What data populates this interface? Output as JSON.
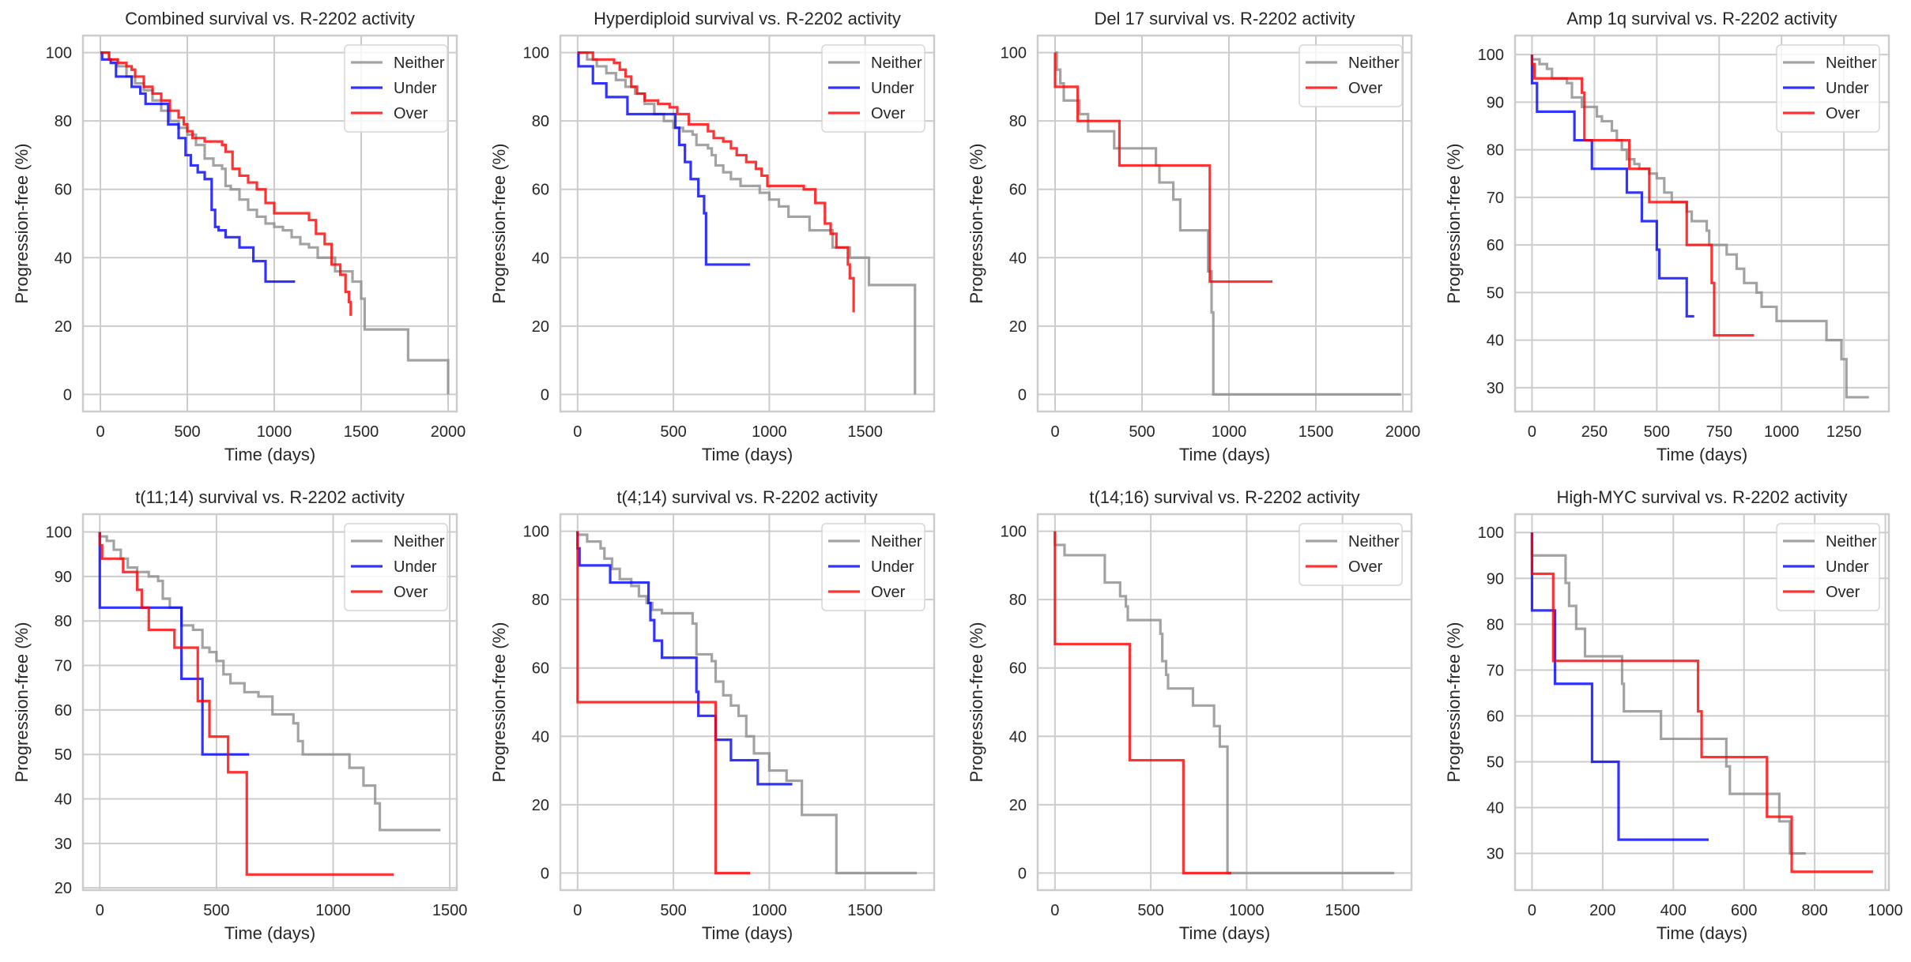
{
  "colors": {
    "Neither": "#8c8c8c",
    "Under": "#0000ff",
    "Over": "#ff0000"
  },
  "chart_data": [
    {
      "type": "line",
      "title": "Combined survival vs. R-2202 activity",
      "xlabel": "Time (days)",
      "ylabel": "Progression-free (%)",
      "xlim": [
        -100,
        2050
      ],
      "ylim": [
        -5,
        105
      ],
      "xticks": [
        0,
        500,
        1000,
        1500,
        2000
      ],
      "yticks": [
        0,
        20,
        40,
        60,
        80,
        100
      ],
      "grid": true,
      "legend": "top-right",
      "series": [
        {
          "name": "Neither",
          "x": [
            0,
            50,
            100,
            150,
            200,
            250,
            300,
            350,
            400,
            450,
            500,
            550,
            600,
            650,
            700,
            720,
            750,
            800,
            850,
            900,
            950,
            1000,
            1050,
            1100,
            1150,
            1200,
            1250,
            1300,
            1350,
            1400,
            1450,
            1500,
            1520,
            1750,
            1770,
            2000
          ],
          "y": [
            100,
            98,
            96,
            93,
            91,
            89,
            86,
            83,
            80,
            78,
            76,
            73,
            69,
            67,
            66,
            61,
            60,
            57,
            54,
            52,
            50,
            49,
            48,
            46,
            44,
            43,
            40,
            40,
            36,
            36,
            33,
            28,
            19,
            19,
            10,
            0
          ]
        },
        {
          "name": "Under",
          "x": [
            0,
            10,
            60,
            90,
            150,
            180,
            230,
            260,
            350,
            390,
            450,
            490,
            520,
            560,
            600,
            630,
            640,
            660,
            680,
            720,
            800,
            880,
            950,
            1120
          ],
          "y": [
            100,
            98,
            97,
            93,
            93,
            90,
            88,
            85,
            85,
            79,
            75,
            70,
            67,
            65,
            63,
            63,
            54,
            49,
            48,
            46,
            43,
            39,
            33,
            33
          ],
          "end_x": 1120
        },
        {
          "name": "Over",
          "x": [
            0,
            50,
            100,
            150,
            180,
            200,
            250,
            300,
            350,
            400,
            450,
            480,
            500,
            530,
            600,
            640,
            700,
            720,
            760,
            800,
            850,
            900,
            950,
            1000,
            1170,
            1200,
            1240,
            1290,
            1330,
            1380,
            1410,
            1430,
            1440
          ],
          "y": [
            100,
            98,
            97,
            96,
            95,
            93,
            90,
            88,
            86,
            83,
            81,
            79,
            77,
            75,
            74,
            74,
            73,
            71,
            66,
            64,
            62,
            60,
            56,
            53,
            53,
            51,
            47,
            44,
            38,
            35,
            30,
            27,
            23
          ]
        }
      ]
    },
    {
      "type": "line",
      "title": "Hyperdiploid survival vs. R-2202 activity",
      "xlabel": "Time (days)",
      "ylabel": "Progression-free (%)",
      "xlim": [
        -90,
        1860
      ],
      "ylim": [
        -5,
        105
      ],
      "xticks": [
        0,
        500,
        1000,
        1500
      ],
      "yticks": [
        0,
        20,
        40,
        60,
        80,
        100
      ],
      "grid": true,
      "legend": "top-right",
      "series": [
        {
          "name": "Neither",
          "x": [
            0,
            50,
            100,
            150,
            200,
            250,
            300,
            350,
            400,
            450,
            500,
            550,
            600,
            620,
            680,
            700,
            720,
            760,
            800,
            850,
            900,
            950,
            1000,
            1050,
            1100,
            1180,
            1210,
            1320,
            1330,
            1420,
            1510,
            1520,
            1760
          ],
          "y": [
            100,
            98,
            96,
            94,
            92,
            90,
            88,
            85,
            82,
            80,
            78,
            77,
            76,
            73,
            72,
            70,
            67,
            65,
            63,
            61,
            61,
            59,
            57,
            55,
            52,
            52,
            48,
            48,
            43,
            40,
            40,
            32,
            0
          ]
        },
        {
          "name": "Under",
          "x": [
            0,
            5,
            80,
            150,
            260,
            470,
            510,
            530,
            560,
            590,
            630,
            660,
            670,
            900
          ],
          "y": [
            100,
            96,
            91,
            87,
            82,
            82,
            78,
            73,
            68,
            63,
            58,
            53,
            38,
            38
          ]
        },
        {
          "name": "Over",
          "x": [
            0,
            80,
            190,
            220,
            250,
            280,
            310,
            350,
            420,
            480,
            520,
            580,
            680,
            710,
            760,
            800,
            830,
            880,
            930,
            960,
            990,
            1180,
            1240,
            1290,
            1320,
            1350,
            1410,
            1420,
            1440
          ],
          "y": [
            100,
            98,
            97,
            95,
            93,
            90,
            88,
            86,
            85,
            84,
            82,
            79,
            77,
            75,
            74,
            72,
            70,
            68,
            66,
            64,
            61,
            60,
            56,
            50,
            47,
            43,
            38,
            34,
            24
          ]
        }
      ]
    },
    {
      "type": "line",
      "title": "Del 17 survival vs. R-2202 activity",
      "xlabel": "Time (days)",
      "ylabel": "Progression-free (%)",
      "xlim": [
        -100,
        2050
      ],
      "ylim": [
        -5,
        105
      ],
      "xticks": [
        0,
        500,
        1000,
        1500,
        2000
      ],
      "yticks": [
        0,
        20,
        40,
        60,
        80,
        100
      ],
      "grid": true,
      "legend": "top-right",
      "series": [
        {
          "name": "Neither",
          "x": [
            0,
            10,
            30,
            50,
            140,
            190,
            340,
            580,
            600,
            680,
            720,
            880,
            900,
            910,
            1990
          ],
          "y": [
            100,
            95,
            91,
            86,
            82,
            77,
            72,
            67,
            62,
            57,
            48,
            36,
            24,
            0,
            0
          ]
        },
        {
          "name": "Over",
          "x": [
            0,
            130,
            370,
            890,
            1250
          ],
          "y": [
            90,
            80,
            67,
            33,
            33
          ]
        }
      ]
    },
    {
      "type": "line",
      "title": "Amp 1q survival vs. R-2202 activity",
      "xlabel": "Time (days)",
      "ylabel": "Progression-free (%)",
      "xlim": [
        -68,
        1430
      ],
      "ylim": [
        25,
        104
      ],
      "xticks": [
        0,
        250,
        500,
        750,
        1000,
        1250
      ],
      "yticks": [
        30,
        40,
        50,
        60,
        70,
        80,
        90,
        100
      ],
      "grid": true,
      "legend": "top-right",
      "series": [
        {
          "name": "Neither",
          "x": [
            0,
            30,
            60,
            80,
            140,
            160,
            200,
            260,
            280,
            320,
            340,
            360,
            380,
            410,
            430,
            470,
            500,
            530,
            560,
            620,
            640,
            700,
            710,
            780,
            820,
            850,
            900,
            920,
            980,
            1180,
            1240,
            1260,
            1350
          ],
          "y": [
            99,
            98,
            97,
            95,
            94,
            91,
            89,
            87,
            86,
            84,
            82,
            80,
            78,
            77,
            76,
            75,
            74,
            71,
            69,
            67,
            65,
            63,
            60,
            58,
            55,
            52,
            50,
            47,
            44,
            40,
            36,
            28,
            28
          ]
        },
        {
          "name": "Under",
          "x": [
            0,
            20,
            170,
            240,
            380,
            440,
            500,
            510,
            620,
            650
          ],
          "y": [
            94,
            88,
            82,
            76,
            71,
            65,
            59,
            53,
            45,
            45
          ]
        },
        {
          "name": "Over",
          "x": [
            0,
            10,
            200,
            210,
            390,
            470,
            620,
            720,
            730,
            890
          ],
          "y": [
            98,
            95,
            92,
            82,
            76,
            69,
            60,
            52,
            41,
            41
          ]
        }
      ]
    },
    {
      "type": "line",
      "title": "t(11;14) survival vs. R-2202 activity",
      "xlabel": "Time (days)",
      "ylabel": "Progression-free (%)",
      "xlim": [
        -72,
        1530
      ],
      "ylim": [
        19.5,
        104
      ],
      "xticks": [
        0,
        500,
        1000,
        1500
      ],
      "yticks": [
        20,
        30,
        40,
        50,
        60,
        70,
        80,
        90,
        100
      ],
      "grid": true,
      "legend": "top-right",
      "series": [
        {
          "name": "Neither",
          "x": [
            0,
            30,
            60,
            90,
            120,
            160,
            210,
            250,
            270,
            300,
            350,
            400,
            440,
            470,
            500,
            530,
            560,
            620,
            680,
            740,
            830,
            850,
            870,
            1070,
            1130,
            1180,
            1200,
            1460
          ],
          "y": [
            99,
            98,
            96,
            94,
            92,
            91,
            90,
            89,
            85,
            83,
            79,
            78,
            74,
            73,
            71,
            68,
            66,
            64,
            63,
            59,
            57,
            53,
            50,
            47,
            43,
            39,
            33,
            33
          ]
        },
        {
          "name": "Under",
          "x": [
            0,
            350,
            440,
            640
          ],
          "y": [
            83,
            67,
            50,
            50
          ]
        },
        {
          "name": "Over",
          "x": [
            0,
            10,
            100,
            160,
            180,
            210,
            320,
            420,
            470,
            550,
            630,
            1260
          ],
          "y": [
            97,
            94,
            91,
            87,
            83,
            78,
            74,
            62,
            54,
            46,
            23,
            23
          ]
        }
      ]
    },
    {
      "type": "line",
      "title": "t(4;14) survival vs. R-2202 activity",
      "xlabel": "Time (days)",
      "ylabel": "Progression-free (%)",
      "xlim": [
        -90,
        1860
      ],
      "ylim": [
        -5,
        105
      ],
      "xticks": [
        0,
        500,
        1000,
        1500
      ],
      "yticks": [
        0,
        20,
        40,
        60,
        80,
        100
      ],
      "grid": true,
      "legend": "top-right",
      "series": [
        {
          "name": "Neither",
          "x": [
            0,
            50,
            120,
            140,
            180,
            220,
            280,
            320,
            360,
            390,
            440,
            560,
            600,
            620,
            700,
            720,
            760,
            800,
            840,
            880,
            920,
            1000,
            1090,
            1170,
            1350,
            1770
          ],
          "y": [
            99,
            97,
            95,
            92,
            89,
            86,
            84,
            81,
            79,
            77,
            76,
            76,
            73,
            64,
            62,
            56,
            52,
            49,
            46,
            40,
            35,
            30,
            27,
            17,
            0,
            0
          ]
        },
        {
          "name": "Under",
          "x": [
            0,
            10,
            170,
            370,
            380,
            400,
            440,
            620,
            630,
            720,
            800,
            940,
            1120
          ],
          "y": [
            95,
            90,
            85,
            79,
            74,
            68,
            63,
            53,
            46,
            39,
            33,
            26,
            26
          ]
        },
        {
          "name": "Over",
          "x": [
            0,
            720,
            900
          ],
          "y": [
            50,
            0,
            0
          ]
        }
      ]
    },
    {
      "type": "line",
      "title": "t(14;16) survival vs. R-2202 activity",
      "xlabel": "Time (days)",
      "ylabel": "Progression-free (%)",
      "xlim": [
        -90,
        1860
      ],
      "ylim": [
        -5,
        105
      ],
      "xticks": [
        0,
        500,
        1000,
        1500
      ],
      "yticks": [
        0,
        20,
        40,
        60,
        80,
        100
      ],
      "grid": true,
      "legend": "top-right",
      "series": [
        {
          "name": "Neither",
          "x": [
            0,
            50,
            260,
            340,
            370,
            380,
            550,
            560,
            580,
            590,
            720,
            830,
            860,
            900,
            1770
          ],
          "y": [
            96,
            93,
            85,
            81,
            78,
            74,
            70,
            62,
            58,
            54,
            49,
            43,
            37,
            0,
            0
          ]
        },
        {
          "name": "Over",
          "x": [
            0,
            390,
            670,
            920
          ],
          "y": [
            67,
            33,
            0,
            0
          ]
        }
      ]
    },
    {
      "type": "line",
      "title": "High-MYC survival vs. R-2202 activity",
      "xlabel": "Time (days)",
      "ylabel": "Progression-free (%)",
      "xlim": [
        -48,
        1010
      ],
      "ylim": [
        22,
        104
      ],
      "xticks": [
        0,
        200,
        400,
        600,
        800,
        1000
      ],
      "yticks": [
        30,
        40,
        50,
        60,
        70,
        80,
        90,
        100
      ],
      "grid": true,
      "legend": "top-right",
      "series": [
        {
          "name": "Neither",
          "x": [
            0,
            95,
            105,
            125,
            150,
            255,
            260,
            265,
            365,
            550,
            560,
            700,
            730,
            775
          ],
          "y": [
            95,
            89,
            84,
            79,
            73,
            67,
            61,
            61,
            55,
            49,
            43,
            37,
            30,
            30
          ]
        },
        {
          "name": "Under",
          "x": [
            0,
            65,
            170,
            245,
            500
          ],
          "y": [
            83,
            67,
            50,
            33,
            33
          ]
        },
        {
          "name": "Over",
          "x": [
            0,
            60,
            470,
            480,
            665,
            735,
            965
          ],
          "y": [
            91,
            72,
            61,
            51,
            38,
            26,
            26
          ]
        }
      ]
    }
  ]
}
